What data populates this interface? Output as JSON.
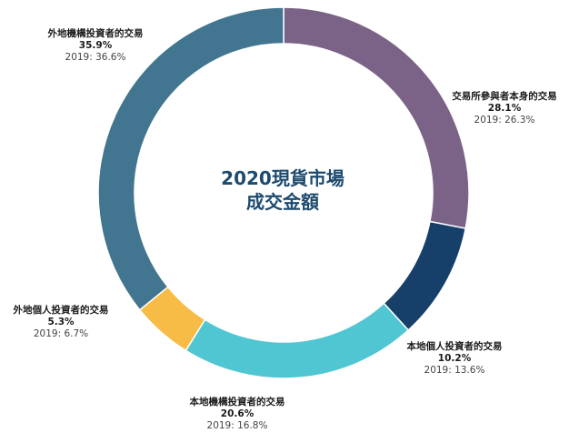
{
  "chart_data": {
    "type": "pie",
    "title_lines": [
      "2020現貨市場",
      "成交金額"
    ],
    "slices": [
      {
        "name": "交易所參與者本身的交易",
        "value": 28.1,
        "value_label": "28.1%",
        "prev_label": "2019: 26.3%",
        "color": "#7a6387"
      },
      {
        "name": "本地個人投資者的交易",
        "value": 10.2,
        "value_label": "10.2%",
        "prev_label": "2019: 13.6%",
        "color": "#163f6a"
      },
      {
        "name": "本地機構投資者的交易",
        "value": 20.6,
        "value_label": "20.6%",
        "prev_label": "2019: 16.8%",
        "color": "#4fc6d2"
      },
      {
        "name": "外地個人投資者的交易",
        "value": 5.3,
        "value_label": "5.3%",
        "prev_label": "2019: 6.7%",
        "color": "#f7bc45"
      },
      {
        "name": "外地機構投資者的交易",
        "value": 35.9,
        "value_label": "35.9%",
        "prev_label": "2019: 36.6%",
        "color": "#42758f"
      }
    ]
  }
}
